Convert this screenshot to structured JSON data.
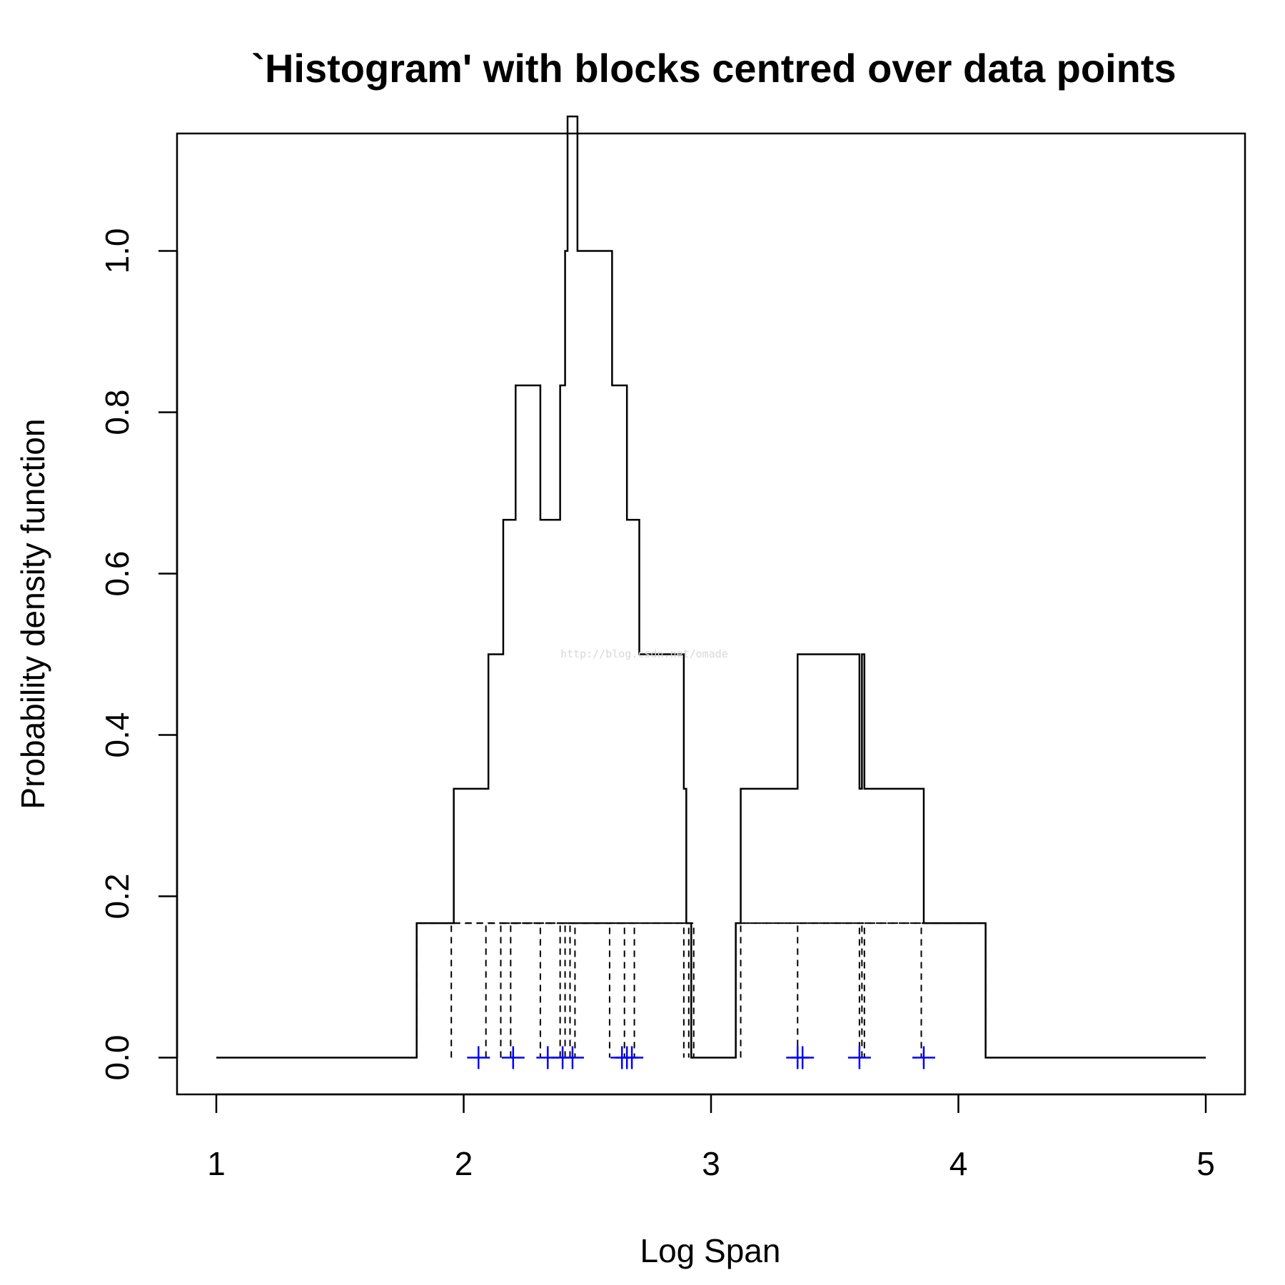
{
  "chart_data": {
    "type": "line",
    "title": "`Histogram' with blocks centred over data points",
    "xlabel": "Log Span",
    "ylabel": "Probability density function",
    "xlim": [
      1,
      5
    ],
    "ylim": [
      0,
      1.15
    ],
    "xticks": [
      1,
      2,
      3,
      4,
      5
    ],
    "yticks": [
      0.0,
      0.2,
      0.4,
      0.6,
      0.8,
      1.0
    ],
    "xtick_labels": [
      "1",
      "2",
      "3",
      "4",
      "5"
    ],
    "ytick_labels": [
      "0.0",
      "0.2",
      "0.4",
      "0.6",
      "0.8",
      "1.0"
    ],
    "grid": false,
    "block_halfwidth": 0.25,
    "block_height": 0.1667,
    "data_points": [
      2.06,
      2.2,
      2.34,
      2.4,
      2.44,
      2.64,
      2.66,
      2.68,
      3.35,
      3.37,
      3.6,
      3.86
    ],
    "block_edges": [
      1.81,
      1.96,
      2.1,
      2.16,
      2.21,
      2.31,
      2.39,
      2.41,
      2.42,
      2.45,
      2.6,
      2.66,
      2.71,
      2.89,
      2.9,
      2.92,
      3.1,
      3.12,
      3.35,
      3.6,
      3.62,
      3.86,
      4.11
    ],
    "density_steps": [
      {
        "x": 1.0,
        "y": 0.0
      },
      {
        "x": 1.81,
        "y": 0.1667
      },
      {
        "x": 1.96,
        "y": 0.3333
      },
      {
        "x": 2.1,
        "y": 0.5
      },
      {
        "x": 2.16,
        "y": 0.6667
      },
      {
        "x": 2.21,
        "y": 0.8333
      },
      {
        "x": 2.31,
        "y": 0.6667
      },
      {
        "x": 2.39,
        "y": 0.8333
      },
      {
        "x": 2.41,
        "y": 1.0
      },
      {
        "x": 2.42,
        "y": 1.1667
      },
      {
        "x": 2.46,
        "y": 1.0
      },
      {
        "x": 2.6,
        "y": 0.8333
      },
      {
        "x": 2.66,
        "y": 0.6667
      },
      {
        "x": 2.71,
        "y": 0.5
      },
      {
        "x": 2.89,
        "y": 0.3333
      },
      {
        "x": 2.9,
        "y": 0.1667
      },
      {
        "x": 2.92,
        "y": 0.0
      },
      {
        "x": 3.1,
        "y": 0.1667
      },
      {
        "x": 3.12,
        "y": 0.3333
      },
      {
        "x": 3.35,
        "y": 0.5
      },
      {
        "x": 3.6,
        "y": 0.3333
      },
      {
        "x": 3.61,
        "y": 0.5
      },
      {
        "x": 3.62,
        "y": 0.3333
      },
      {
        "x": 3.86,
        "y": 0.1667
      },
      {
        "x": 4.11,
        "y": 0.0
      },
      {
        "x": 5.0,
        "y": 0.0
      }
    ],
    "colors": {
      "line": "#000000",
      "rug": "#0000ff",
      "frame": "#000000"
    }
  },
  "watermark": "http://blog.csdn.net/omade"
}
